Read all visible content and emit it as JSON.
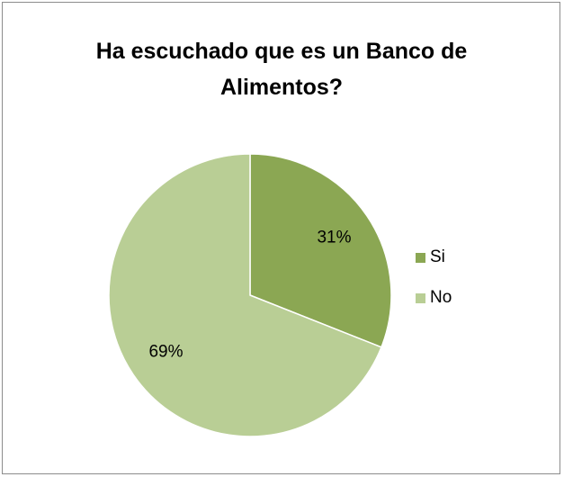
{
  "chart_data": {
    "type": "pie",
    "title": "Ha escuchado que es un Banco de Alimentos?",
    "categories": [
      "Si",
      "No"
    ],
    "values": [
      31,
      69
    ],
    "data_labels": [
      "31%",
      "69%"
    ],
    "colors": [
      "#8ba753",
      "#b9ce95"
    ],
    "legend_position": "right"
  }
}
